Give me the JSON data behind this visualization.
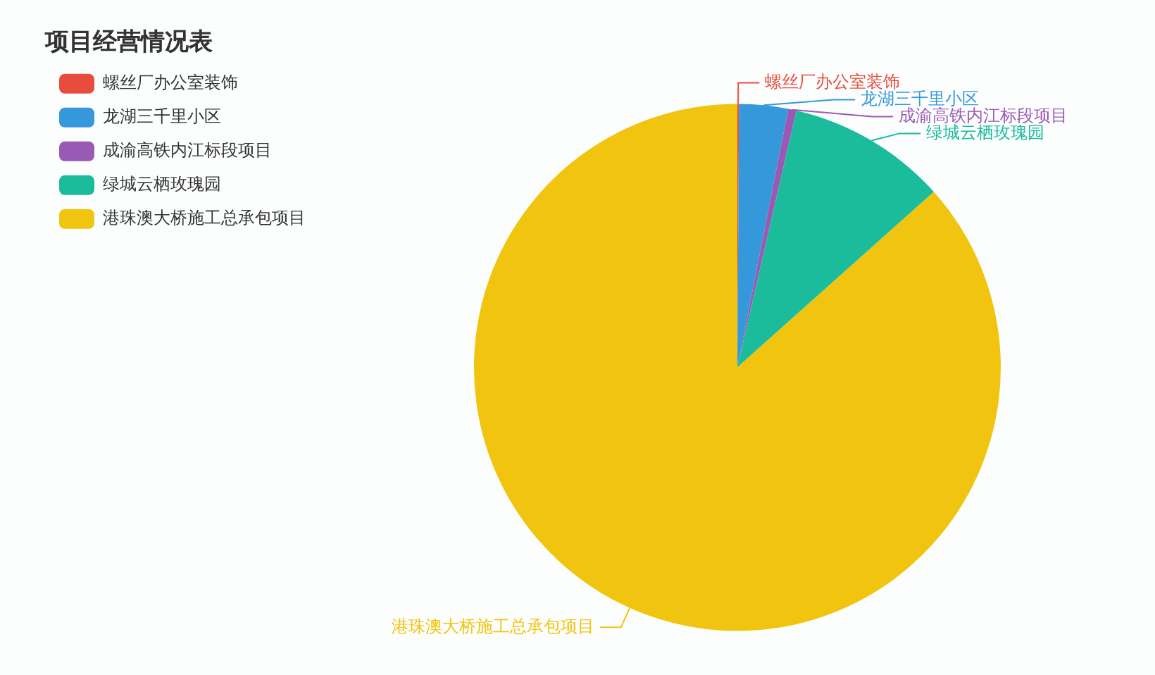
{
  "chart_data": {
    "type": "pie",
    "title": "项目经营情况表",
    "categories": [
      "螺丝厂办公室装饰",
      "龙湖三千里小区",
      "成渝高铁内江标段项目",
      "绿城云栖玫瑰园",
      "港珠澳大桥施工总承包项目"
    ],
    "values": [
      0.1,
      3,
      0.5,
      9.8,
      86.6
    ],
    "colors": [
      "#e74c3c",
      "#3498db",
      "#9b59b6",
      "#1abc9c",
      "#f1c40f"
    ],
    "legend": "top left"
  }
}
